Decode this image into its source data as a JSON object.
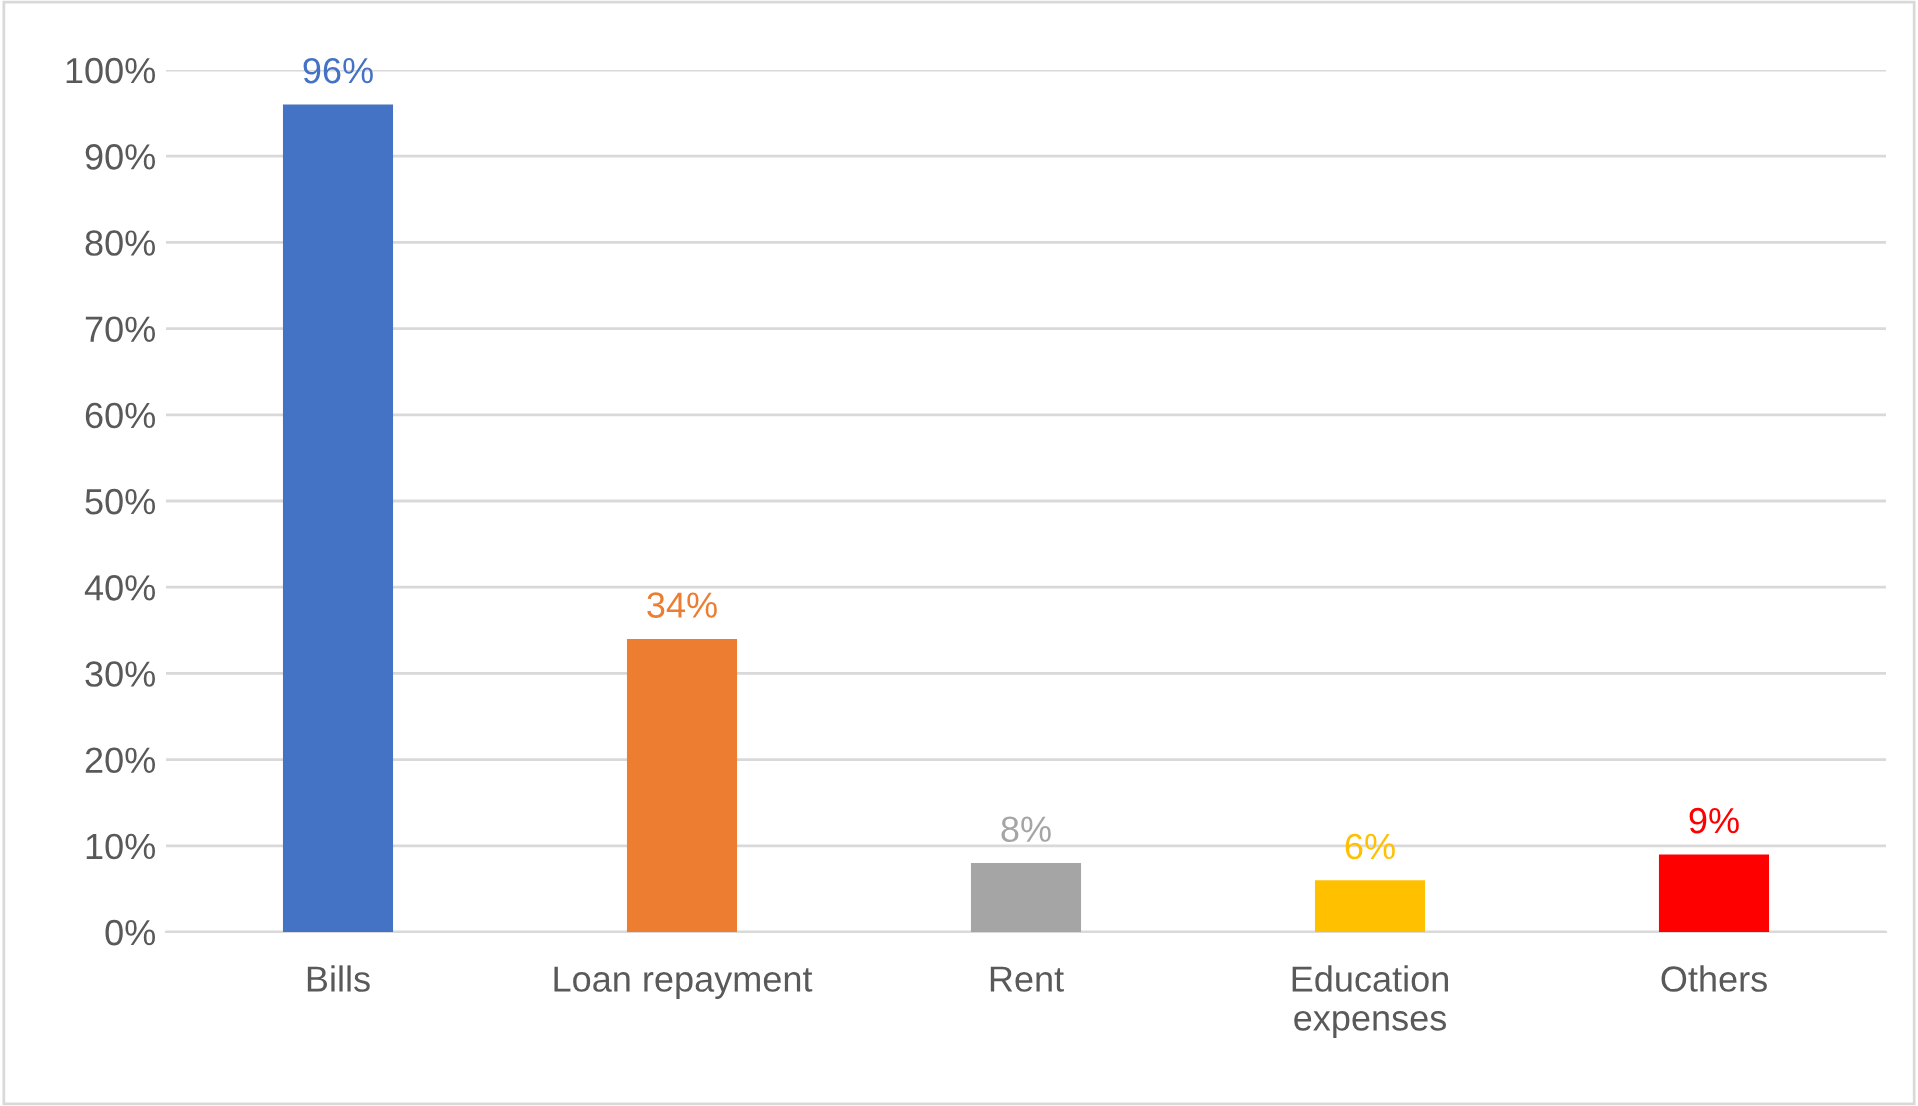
{
  "chart_data": {
    "type": "bar",
    "categories": [
      "Bills",
      "Loan repayment",
      "Rent",
      "Education\nexpenses",
      "Others"
    ],
    "values": [
      96,
      34,
      8,
      6,
      9
    ],
    "colors": [
      "#4472c4",
      "#ed7d31",
      "#a5a5a5",
      "#ffc000",
      "#ff0000"
    ],
    "value_labels": [
      "96%",
      "34%",
      "8%",
      "6%",
      "9%"
    ],
    "ylim": [
      0,
      100
    ],
    "yticks": [
      {
        "value": 0,
        "label": "0%"
      },
      {
        "value": 10,
        "label": "10%"
      },
      {
        "value": 20,
        "label": "20%"
      },
      {
        "value": 30,
        "label": "30%"
      },
      {
        "value": 40,
        "label": "40%"
      },
      {
        "value": 50,
        "label": "50%"
      },
      {
        "value": 60,
        "label": "60%"
      },
      {
        "value": 70,
        "label": "70%"
      },
      {
        "value": 80,
        "label": "80%"
      },
      {
        "value": 90,
        "label": "90%"
      },
      {
        "value": 100,
        "label": "100%"
      }
    ],
    "grid": "y",
    "legend": false
  }
}
